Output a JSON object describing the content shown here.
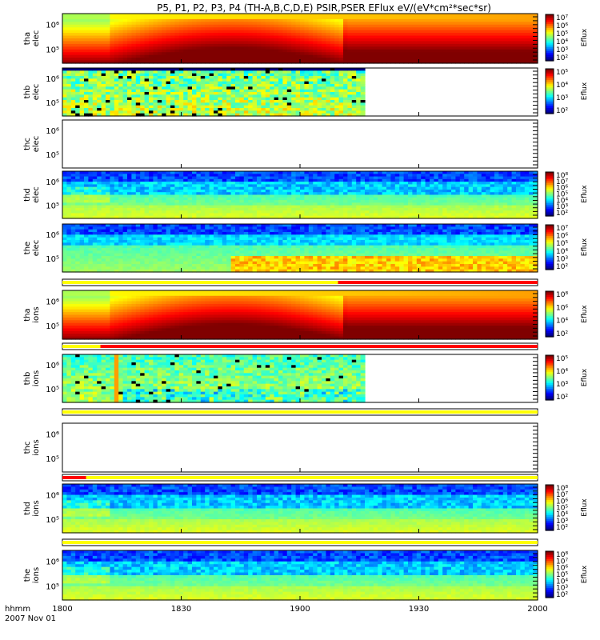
{
  "chart_data": {
    "type": "heatmap",
    "title": "P5, P1, P2, P3, P4 (TH-A,B,C,D,E) PSIR,PSER EFlux eV/(eV*cm²*sec*sr)",
    "x_ticks": [
      "1800",
      "1830",
      "1900",
      "1930",
      "2000"
    ],
    "x_footer": [
      "hhmm",
      "2007 Nov 01"
    ],
    "colorbar_label": "Eflux",
    "panels": [
      {
        "id": "tha-elec",
        "label1": "tha",
        "label2": "elec",
        "yticks": [
          "10⁶",
          "10⁵"
        ],
        "cb_ticks": [
          "10⁷",
          "10⁶",
          "10⁵",
          "10⁴",
          "10³",
          "10²"
        ],
        "has_data": true,
        "data_end_frac": 1.0,
        "style": "smooth-hot"
      },
      {
        "id": "thb-elec",
        "label1": "thb",
        "label2": "elec",
        "yticks": [
          "10⁶",
          "10⁵"
        ],
        "cb_ticks": [
          "10⁵",
          "10⁴",
          "10³",
          "10²"
        ],
        "has_data": true,
        "data_end_frac": 0.64,
        "style": "noisy"
      },
      {
        "id": "thc-elec",
        "label1": "thc",
        "label2": "elec",
        "yticks": [
          "10⁶",
          "10⁵"
        ],
        "cb_ticks": [],
        "has_data": false,
        "data_end_frac": 0,
        "style": "empty"
      },
      {
        "id": "thd-elec",
        "label1": "thd",
        "label2": "elec",
        "yticks": [
          "10⁶",
          "10⁵"
        ],
        "cb_ticks": [
          "10⁸",
          "10⁷",
          "10⁶",
          "10⁵",
          "10⁴",
          "10³",
          "10²"
        ],
        "has_data": true,
        "data_end_frac": 1.0,
        "style": "cool-green"
      },
      {
        "id": "the-elec",
        "label1": "the",
        "label2": "elec",
        "yticks": [
          "10⁶",
          "10⁵"
        ],
        "cb_ticks": [
          "10⁷",
          "10⁶",
          "10⁵",
          "10⁴",
          "10³",
          "10²"
        ],
        "has_data": true,
        "data_end_frac": 1.0,
        "style": "cool-green2"
      },
      {
        "id": "tha-ions",
        "label1": "tha",
        "label2": "ions",
        "yticks": [
          "10⁶",
          "10⁵"
        ],
        "cb_ticks": [
          "10⁸",
          "10⁶",
          "10⁴",
          "10²"
        ],
        "has_data": true,
        "data_end_frac": 1.0,
        "style": "smooth-hot"
      },
      {
        "id": "thb-ions",
        "label1": "thb",
        "label2": "ions",
        "yticks": [
          "10⁶",
          "10⁵"
        ],
        "cb_ticks": [
          "10⁵",
          "10⁴",
          "10³",
          "10²"
        ],
        "has_data": true,
        "data_end_frac": 0.64,
        "style": "noisy-cyan"
      },
      {
        "id": "thc-ions",
        "label1": "thc",
        "label2": "ions",
        "yticks": [
          "10⁶",
          "10⁵"
        ],
        "cb_ticks": [],
        "has_data": false,
        "data_end_frac": 0,
        "style": "empty"
      },
      {
        "id": "thd-ions",
        "label1": "thd",
        "label2": "ions",
        "yticks": [
          "10⁶",
          "10⁵"
        ],
        "cb_ticks": [
          "10⁸",
          "10⁷",
          "10⁶",
          "10⁵",
          "10⁴",
          "10³",
          "10²"
        ],
        "has_data": true,
        "data_end_frac": 1.0,
        "style": "cool-green"
      },
      {
        "id": "the-ions",
        "label1": "the",
        "label2": "ions",
        "yticks": [
          "10⁶",
          "10⁵"
        ],
        "cb_ticks": [
          "10⁸",
          "10⁷",
          "10⁶",
          "10⁵",
          "10⁴",
          "10³",
          "10²"
        ],
        "has_data": true,
        "data_end_frac": 1.0,
        "style": "cool-green"
      }
    ],
    "mode_bars": [
      {
        "after": "the-elec",
        "segments": [
          {
            "from": 0.0,
            "to": 0.58,
            "color": "#ffff00"
          },
          {
            "from": 0.58,
            "to": 1.0,
            "color": "#ff0000"
          }
        ]
      },
      {
        "after": "tha-ions",
        "segments": [
          {
            "from": 0.0,
            "to": 0.08,
            "color": "#ffff00"
          },
          {
            "from": 0.08,
            "to": 1.0,
            "color": "#ff0000"
          }
        ]
      },
      {
        "after": "thb-ions",
        "segments": [
          {
            "from": 0.0,
            "to": 1.0,
            "color": "#ffff00"
          }
        ]
      },
      {
        "after": "thc-ions",
        "segments": [
          {
            "from": 0.0,
            "to": 0.05,
            "color": "#ff0000"
          },
          {
            "from": 0.05,
            "to": 1.0,
            "color": "#ffff00"
          }
        ]
      },
      {
        "after": "thd-ions",
        "segments": [
          {
            "from": 0.0,
            "to": 1.0,
            "color": "#ffff00"
          }
        ]
      }
    ]
  }
}
